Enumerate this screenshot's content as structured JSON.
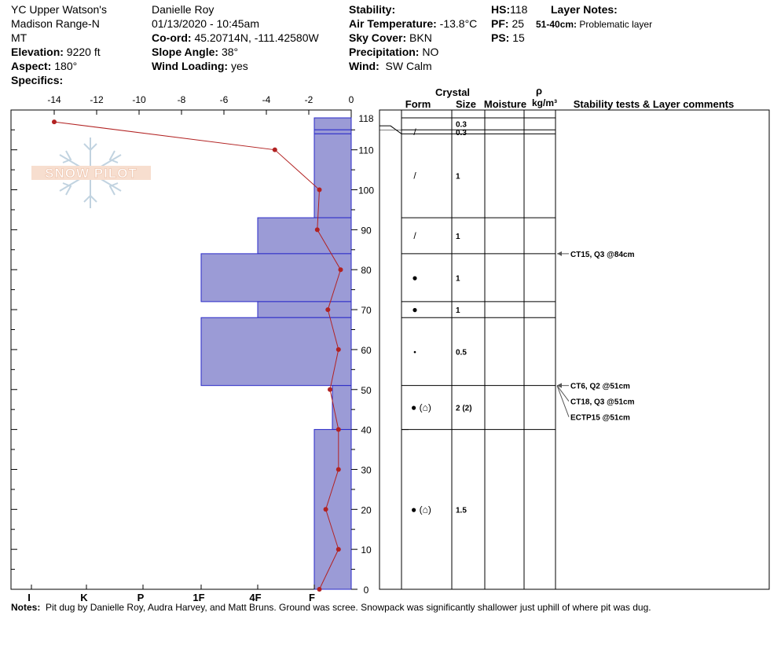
{
  "header": {
    "location": "YC Upper Watson's",
    "range": "Madison Range-N",
    "state": "MT",
    "elevation_label": "Elevation:",
    "elevation": "9220 ft",
    "aspect_label": "Aspect:",
    "aspect": "180°",
    "specifics_label": "Specifics:",
    "observer": "Danielle Roy",
    "datetime": "01/13/2020 - 10:45am",
    "coord_label": "Co-ord:",
    "coord": "45.20714N, -111.42580W",
    "slope_label": "Slope Angle:",
    "slope": "38°",
    "wind_loading_label": "Wind Loading:",
    "wind_loading": "yes",
    "stability_label": "Stability:",
    "air_temp_label": "Air Temperature:",
    "air_temp": "-13.8°C",
    "sky_label": "Sky Cover:",
    "sky": "BKN",
    "precip_label": "Precipitation:",
    "precip": "NO",
    "wind_label": "Wind:",
    "wind": "SW Calm",
    "hs_label": "HS:",
    "hs": "118",
    "pf_label": "PF:",
    "pf": "25",
    "ps_label": "PS:",
    "ps": "15",
    "layer_notes_label": "Layer Notes:",
    "layer_note_range": "51-40cm:",
    "layer_note_text": "Problematic layer"
  },
  "logo_text": "SNOW PILOT",
  "notes_label": "Notes:",
  "notes_text": "Pit dug by Danielle Roy, Audra Harvey, and Matt Bruns.  Ground was scree.  Snowpack was significantly shallower just uphill of where pit was dug.",
  "columns": {
    "crystal": "Crystal",
    "form": "Form",
    "size": "Size",
    "moisture": "Moisture",
    "rho": "ρ",
    "density_unit": "kg/m³",
    "stability": "Stability tests & Layer comments"
  },
  "colors": {
    "hardness_fill": "#9b9bd6",
    "hardness_stroke": "#2a2ac8",
    "temp_line": "#b22222"
  },
  "chart_data": {
    "type": "snow_profile",
    "temperature_axis": {
      "ticks": [
        "-14",
        "-12",
        "-10",
        "-8",
        "-6",
        "-4",
        "-2",
        "0"
      ],
      "range": [
        -15,
        0
      ]
    },
    "height_axis": {
      "ticks": [
        "118",
        "110",
        "100",
        "90",
        "80",
        "70",
        "60",
        "50",
        "40",
        "30",
        "20",
        "10",
        "0"
      ],
      "range": [
        0,
        120
      ]
    },
    "hardness_axis": {
      "ticks": [
        "I",
        "K",
        "P",
        "1F",
        "4F",
        "F"
      ]
    },
    "temperature_profile": [
      {
        "height": 117,
        "temp": -14.0
      },
      {
        "height": 110,
        "temp": -3.6
      },
      {
        "height": 100,
        "temp": -1.5
      },
      {
        "height": 90,
        "temp": -1.6
      },
      {
        "height": 80,
        "temp": -0.5
      },
      {
        "height": 70,
        "temp": -1.1
      },
      {
        "height": 60,
        "temp": -0.6
      },
      {
        "height": 50,
        "temp": -1.0
      },
      {
        "height": 40,
        "temp": -0.6
      },
      {
        "height": 30,
        "temp": -0.6
      },
      {
        "height": 20,
        "temp": -1.2
      },
      {
        "height": 10,
        "temp": -0.6
      },
      {
        "height": 0,
        "temp": -1.5
      }
    ],
    "layers": [
      {
        "top": 118,
        "bottom": 115,
        "hardness": "F",
        "form": "",
        "size": "0.3"
      },
      {
        "top": 115,
        "bottom": 114,
        "hardness": "F",
        "form": "/",
        "size": "0.3"
      },
      {
        "top": 114,
        "bottom": 93,
        "hardness": "F",
        "form": "/",
        "size": "1"
      },
      {
        "top": 93,
        "bottom": 84,
        "hardness": "4F",
        "form": "/",
        "size": "1"
      },
      {
        "top": 84,
        "bottom": 72,
        "hardness": "1F",
        "form": "●",
        "size": "1"
      },
      {
        "top": 72,
        "bottom": 68,
        "hardness": "4F",
        "form": "●",
        "size": "1"
      },
      {
        "top": 68,
        "bottom": 51,
        "hardness": "1F",
        "form": "•",
        "size": "0.5"
      },
      {
        "top": 51,
        "bottom": 40,
        "hardness": "F-",
        "form": "● (⌂)",
        "size": "2 (2)"
      },
      {
        "top": 40,
        "bottom": 0,
        "hardness": "F",
        "form": "● (⌂)",
        "size": "1.5"
      }
    ],
    "stability_tests": [
      {
        "height": 84,
        "label": "CT15, Q3 @84cm"
      },
      {
        "height": 51,
        "label": "CT6, Q2 @51cm"
      },
      {
        "height": 51,
        "label": "CT18, Q3 @51cm"
      },
      {
        "height": 51,
        "label": "ECTP15 @51cm"
      }
    ]
  }
}
